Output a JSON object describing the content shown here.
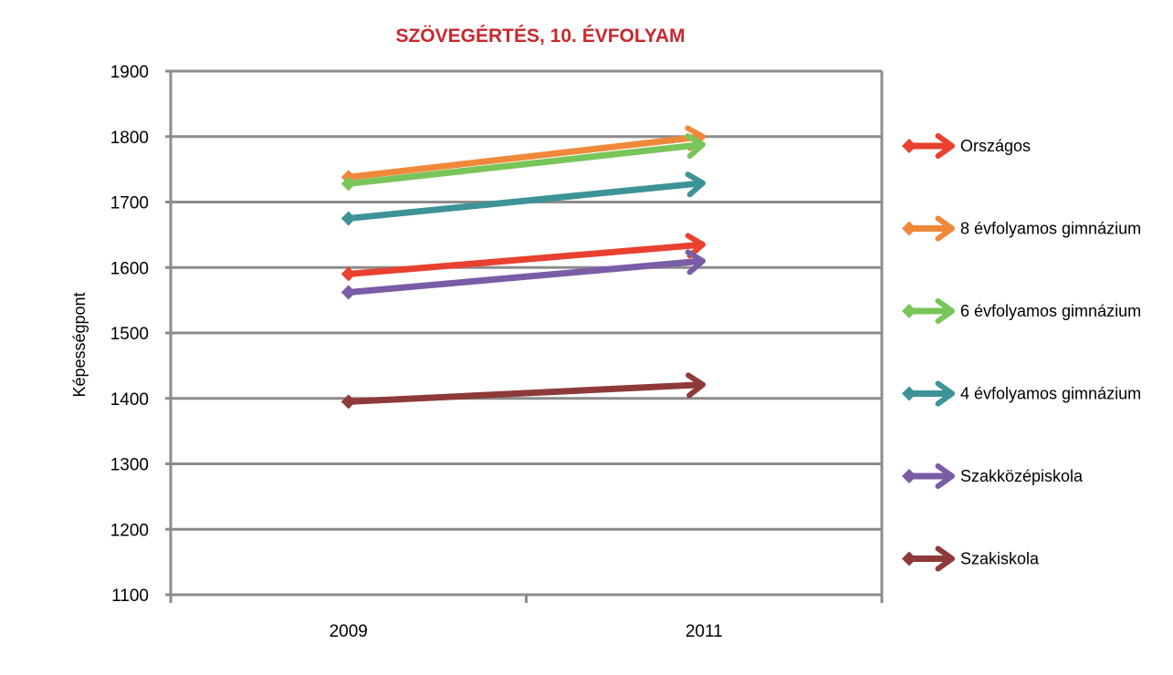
{
  "chart_data": {
    "type": "line",
    "title": "SZÖVEGÉRTÉS, 10. ÉVFOLYAM",
    "xlabel": "",
    "ylabel": "Képességpont",
    "categories": [
      "2009",
      "2011"
    ],
    "ylim": [
      1100,
      1900
    ],
    "yticks": [
      "1900",
      "1800",
      "1700",
      "1600",
      "1500",
      "1400",
      "1300",
      "1200",
      "1100"
    ],
    "grid": true,
    "legend_position": "right",
    "series": [
      {
        "name": "Országos",
        "values": [
          1590,
          1635
        ],
        "color": "#e8412f"
      },
      {
        "name": "8 évfolyamos gimnázium",
        "values": [
          1738,
          1800
        ],
        "color": "#f0883a"
      },
      {
        "name": "6 évfolyamos gimnázium",
        "values": [
          1728,
          1788
        ],
        "color": "#78c55a"
      },
      {
        "name": "4 évfolyamos gimnázium",
        "values": [
          1675,
          1729
        ],
        "color": "#3d9395"
      },
      {
        "name": "Szakközépiskola",
        "values": [
          1562,
          1610
        ],
        "color": "#7b5ca6"
      },
      {
        "name": "Szakiskola",
        "values": [
          1395,
          1421
        ],
        "color": "#8e3a3a"
      }
    ]
  }
}
